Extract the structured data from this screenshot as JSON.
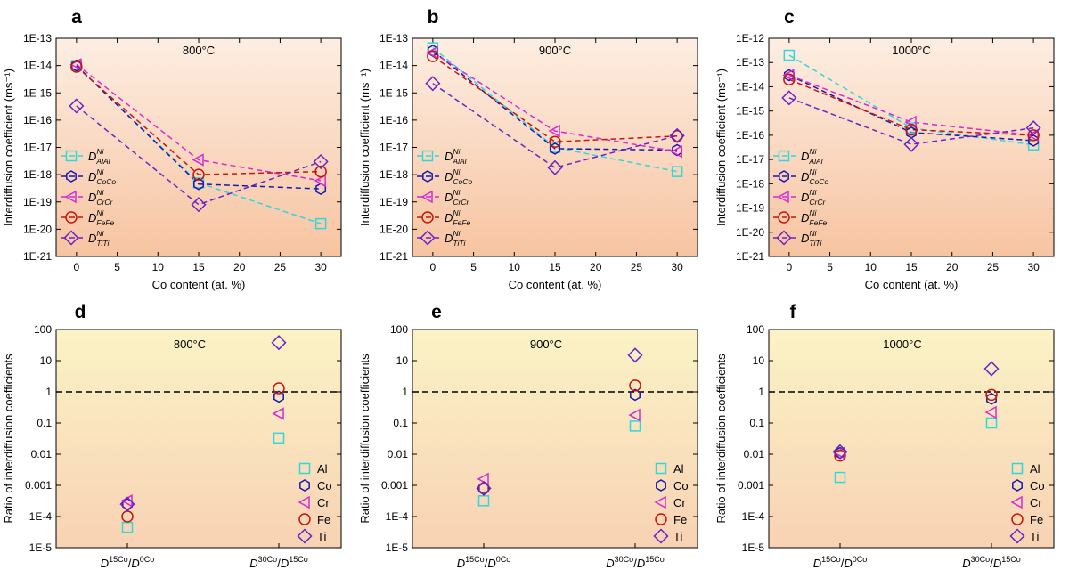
{
  "colors": {
    "Al": "#2ed8dc",
    "Co": "#1818b0",
    "Cr": "#d52ad5",
    "Fe": "#c8140a",
    "Ti": "#6a24c6"
  },
  "chart_data": [
    {
      "id": "a",
      "type": "line",
      "temperature": "800°C",
      "ylabel": "Interdiffusion coefficient (ms⁻¹)",
      "xlabel": "Co content (at. %)",
      "x": [
        0,
        15,
        30
      ],
      "xticks": [
        "0",
        "5",
        "10",
        "15",
        "20",
        "25",
        "30"
      ],
      "xlim": [
        -2.5,
        32.5
      ],
      "ylim_exp": [
        -21,
        -13
      ],
      "yticks": [
        "1E-21",
        "1E-20",
        "1E-19",
        "1E-18",
        "1E-17",
        "1E-16",
        "1E-15",
        "1E-14",
        "1E-13"
      ],
      "series": [
        {
          "name": "Al",
          "label": "D",
          "sup": "Ni",
          "sub": "AlAl",
          "values": [
            1e-14,
            5e-19,
            1.6e-20
          ]
        },
        {
          "name": "Co",
          "label": "D",
          "sup": "Ni",
          "sub": "CoCo",
          "values": [
            1e-14,
            4.5e-19,
            3e-19
          ]
        },
        {
          "name": "Cr",
          "label": "D",
          "sup": "Ni",
          "sub": "CrCr",
          "values": [
            1.1e-14,
            3.5e-18,
            6e-19
          ]
        },
        {
          "name": "Fe",
          "label": "D",
          "sup": "Ni",
          "sub": "FeFe",
          "values": [
            9e-15,
            1e-18,
            1.3e-18
          ]
        },
        {
          "name": "Ti",
          "label": "D",
          "sup": "Ni",
          "sub": "TiTi",
          "values": [
            3.3e-16,
            8e-20,
            3e-18
          ]
        }
      ]
    },
    {
      "id": "b",
      "type": "line",
      "temperature": "900°C",
      "ylabel": "Interdiffusion coefficient (ms⁻¹)",
      "xlabel": "Co content (at. %)",
      "x": [
        0,
        15,
        30
      ],
      "xticks": [
        "0",
        "5",
        "10",
        "15",
        "20",
        "25",
        "30"
      ],
      "xlim": [
        -2.5,
        32.5
      ],
      "ylim_exp": [
        -21,
        -13
      ],
      "yticks": [
        "1E-21",
        "1E-20",
        "1E-19",
        "1E-18",
        "1E-17",
        "1E-16",
        "1E-15",
        "1E-14",
        "1E-13"
      ],
      "series": [
        {
          "name": "Al",
          "label": "D",
          "sup": "Ni",
          "sub": "AlAl",
          "values": [
            4.5e-14,
            1e-17,
            1.3e-18
          ]
        },
        {
          "name": "Co",
          "label": "D",
          "sup": "Ni",
          "sub": "CoCo",
          "values": [
            3.5e-14,
            9e-18,
            8e-18
          ]
        },
        {
          "name": "Cr",
          "label": "D",
          "sup": "Ni",
          "sub": "CrCr",
          "values": [
            3e-14,
            4e-17,
            7e-18
          ]
        },
        {
          "name": "Fe",
          "label": "D",
          "sup": "Ni",
          "sub": "FeFe",
          "values": [
            2.2e-14,
            1.6e-17,
            2.6e-17
          ]
        },
        {
          "name": "Ti",
          "label": "D",
          "sup": "Ni",
          "sub": "TiTi",
          "values": [
            2.2e-15,
            1.8e-18,
            2.7e-17
          ]
        }
      ]
    },
    {
      "id": "c",
      "type": "line",
      "temperature": "1000°C",
      "ylabel": "Interdiffusion coefficient (ms⁻¹)",
      "xlabel": "Co content (at. %)",
      "x": [
        0,
        15,
        30
      ],
      "xticks": [
        "0",
        "5",
        "10",
        "15",
        "20",
        "25",
        "30"
      ],
      "xlim": [
        -2.5,
        32.5
      ],
      "ylim_exp": [
        -21,
        -12
      ],
      "yticks": [
        "1E-21",
        "1E-20",
        "1E-19",
        "1E-18",
        "1E-17",
        "1E-16",
        "1E-15",
        "1E-14",
        "1E-13",
        "1E-12"
      ],
      "series": [
        {
          "name": "Al",
          "label": "D",
          "sup": "Ni",
          "sub": "AlAl",
          "values": [
            2e-13,
            2e-16,
            4e-17
          ]
        },
        {
          "name": "Co",
          "label": "D",
          "sup": "Ni",
          "sub": "CoCo",
          "values": [
            3e-14,
            1.3e-16,
            6e-17
          ]
        },
        {
          "name": "Cr",
          "label": "D",
          "sup": "Ni",
          "sub": "CrCr",
          "values": [
            3e-14,
            3.5e-16,
            1e-16
          ]
        },
        {
          "name": "Fe",
          "label": "D",
          "sup": "Ni",
          "sub": "FeFe",
          "values": [
            2e-14,
            1.7e-16,
            1e-16
          ]
        },
        {
          "name": "Ti",
          "label": "D",
          "sup": "Ni",
          "sub": "TiTi",
          "values": [
            3.5e-15,
            4.2e-17,
            2e-16
          ]
        }
      ]
    },
    {
      "id": "d",
      "type": "scatter",
      "temperature": "800°C",
      "ylabel": "Ratio of interdiffusion coefficients",
      "categories": [
        {
          "D": "D",
          "a": "15Co",
          "b": "0Co"
        },
        {
          "D": "D",
          "a": "30Co",
          "b": "15Co"
        }
      ],
      "ylim_exp": [
        -5,
        2
      ],
      "yticks": [
        "1E-5",
        "1E-4",
        "0.001",
        "0.01",
        "0.1",
        "1",
        "10",
        "100"
      ],
      "reference_line": 1,
      "series": [
        {
          "name": "Al",
          "values": [
            4.5e-05,
            0.033
          ]
        },
        {
          "name": "Co",
          "values": [
            0.00025,
            0.7
          ]
        },
        {
          "name": "Cr",
          "values": [
            0.00032,
            0.2
          ]
        },
        {
          "name": "Fe",
          "values": [
            0.0001,
            1.3
          ]
        },
        {
          "name": "Ti",
          "values": [
            0.00025,
            38
          ]
        }
      ]
    },
    {
      "id": "e",
      "type": "scatter",
      "temperature": "900°C",
      "ylabel": "Ratio of interdiffusion coefficients",
      "categories": [
        {
          "D": "D",
          "a": "15Co",
          "b": "0Co"
        },
        {
          "D": "D",
          "a": "30Co",
          "b": "15Co"
        }
      ],
      "ylim_exp": [
        -5,
        2
      ],
      "yticks": [
        "1E-5",
        "1E-4",
        "0.001",
        "0.01",
        "0.1",
        "1",
        "10",
        "100"
      ],
      "reference_line": 1,
      "series": [
        {
          "name": "Al",
          "values": [
            0.00032,
            0.08
          ]
        },
        {
          "name": "Co",
          "values": [
            0.0008,
            0.8
          ]
        },
        {
          "name": "Cr",
          "values": [
            0.0016,
            0.18
          ]
        },
        {
          "name": "Fe",
          "values": [
            0.0008,
            1.6
          ]
        },
        {
          "name": "Ti",
          "values": [
            0.0008,
            15
          ]
        }
      ]
    },
    {
      "id": "f",
      "type": "scatter",
      "temperature": "1000°C",
      "ylabel": "Ratio of interdiffusion coefficients",
      "categories": [
        {
          "D": "D",
          "a": "15Co",
          "b": "0Co"
        },
        {
          "D": "D",
          "a": "30Co",
          "b": "15Co"
        }
      ],
      "ylim_exp": [
        -5,
        2
      ],
      "yticks": [
        "1E-5",
        "1E-4",
        "0.001",
        "0.01",
        "0.1",
        "1",
        "10",
        "100"
      ],
      "reference_line": 1,
      "series": [
        {
          "name": "Al",
          "values": [
            0.0018,
            0.1
          ]
        },
        {
          "name": "Co",
          "values": [
            0.011,
            0.6
          ]
        },
        {
          "name": "Cr",
          "values": [
            0.011,
            0.22
          ]
        },
        {
          "name": "Fe",
          "values": [
            0.009,
            0.8
          ]
        },
        {
          "name": "Ti",
          "values": [
            0.012,
            5.5
          ]
        }
      ]
    }
  ]
}
